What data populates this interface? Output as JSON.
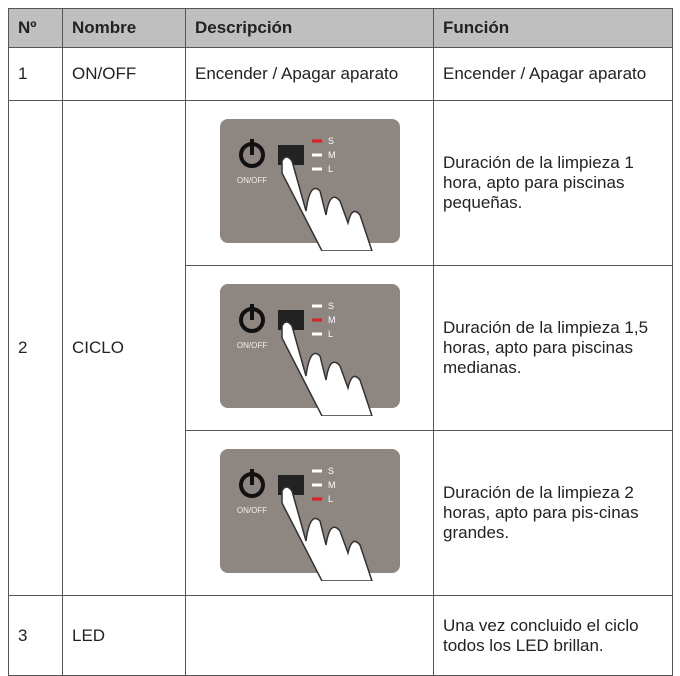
{
  "table": {
    "headers": [
      "Nº",
      "Nombre",
      "Descripción",
      "Función"
    ],
    "rows": [
      {
        "no": "1",
        "name": "ON/OFF",
        "description": "Encender / Apagar aparato",
        "function": "Encender / Apagar aparato"
      },
      {
        "no": "2",
        "name": "CICLO",
        "modes": [
          {
            "panel": {
              "button": "ON/OFF",
              "levels": [
                "S",
                "M",
                "L"
              ],
              "active": 0
            },
            "function": "Duración de la limpieza 1 hora, apto para piscinas pequeñas."
          },
          {
            "panel": {
              "button": "ON/OFF",
              "levels": [
                "S",
                "M",
                "L"
              ],
              "active": 1
            },
            "function": "Duración de la limpieza 1,5 horas, apto para piscinas medianas."
          },
          {
            "panel": {
              "button": "ON/OFF",
              "levels": [
                "S",
                "M",
                "L"
              ],
              "active": 2
            },
            "function": "Duración de la limpieza 2 horas, apto para pis-cinas grandes."
          }
        ]
      },
      {
        "no": "3",
        "name": "LED",
        "function": "Una vez concluido el ciclo todos los LED brillan."
      }
    ]
  }
}
